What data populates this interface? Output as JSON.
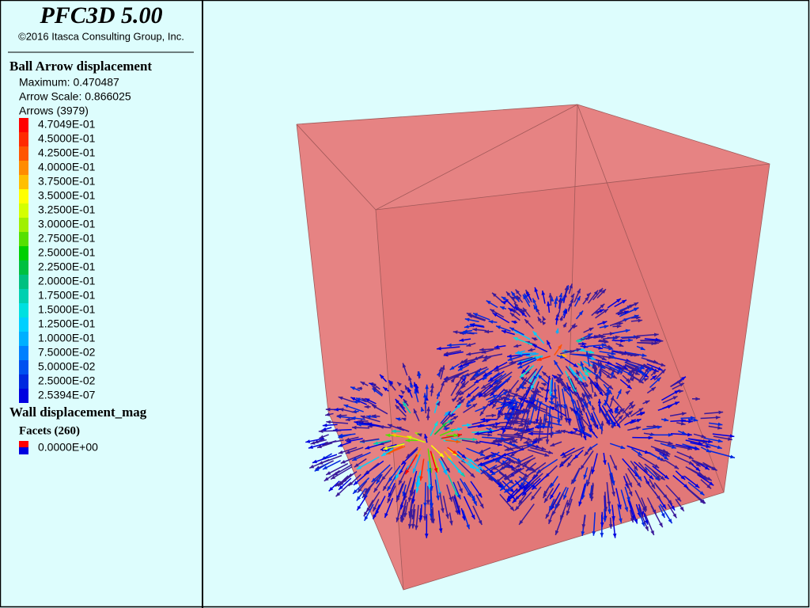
{
  "header": {
    "title": "PFC3D 5.00",
    "copyright": "©2016 Itasca Consulting Group, Inc."
  },
  "legend": {
    "ball_arrow": {
      "title": "Ball Arrow displacement",
      "maximum": "Maximum: 0.470487",
      "arrow_scale": "Arrow Scale: 0.866025",
      "arrows": "Arrows (3979)",
      "entries": [
        {
          "label": "4.7049E-01",
          "color": "#ff0000"
        },
        {
          "label": "4.5000E-01",
          "color": "#ff2a00"
        },
        {
          "label": "4.2500E-01",
          "color": "#ff5500"
        },
        {
          "label": "4.0000E-01",
          "color": "#ff8c00"
        },
        {
          "label": "3.7500E-01",
          "color": "#ffbf00"
        },
        {
          "label": "3.5000E-01",
          "color": "#ffff00"
        },
        {
          "label": "3.2500E-01",
          "color": "#d4ff00"
        },
        {
          "label": "3.0000E-01",
          "color": "#a0f000"
        },
        {
          "label": "2.7500E-01",
          "color": "#55e000"
        },
        {
          "label": "2.5000E-01",
          "color": "#00d000"
        },
        {
          "label": "2.2500E-01",
          "color": "#00c040"
        },
        {
          "label": "2.0000E-01",
          "color": "#00c080"
        },
        {
          "label": "1.7500E-01",
          "color": "#00d0b0"
        },
        {
          "label": "1.5000E-01",
          "color": "#00e0e0"
        },
        {
          "label": "1.2500E-01",
          "color": "#00d0ff"
        },
        {
          "label": "1.0000E-01",
          "color": "#00b0ff"
        },
        {
          "label": "7.5000E-02",
          "color": "#0080ff"
        },
        {
          "label": "5.0000E-02",
          "color": "#0050f0"
        },
        {
          "label": "2.5000E-02",
          "color": "#0028e0"
        },
        {
          "label": "2.5394E-07",
          "color": "#0000e0"
        }
      ]
    },
    "wall": {
      "title": "Wall displacement_mag",
      "facets": "Facets (260)",
      "entry": {
        "label": "0.0000E+00",
        "colors": [
          "#ff0000",
          "#0000e0"
        ]
      }
    }
  }
}
